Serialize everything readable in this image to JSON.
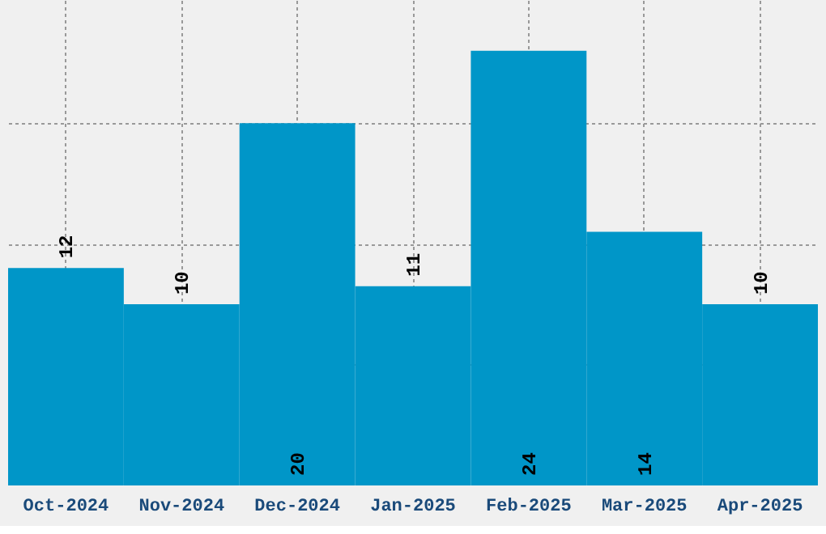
{
  "chart_data": {
    "type": "bar",
    "categories": [
      "Oct-2024",
      "Nov-2024",
      "Dec-2024",
      "Jan-2025",
      "Feb-2025",
      "Mar-2025",
      "Apr-2025"
    ],
    "values": [
      12,
      10,
      20,
      11,
      24,
      14,
      10
    ],
    "color": "#0096c8",
    "ylim": [
      0,
      26.8
    ],
    "yticks": [
      {
        "value": 6.7,
        "label": null
      },
      {
        "value": 13.3,
        "label": null
      },
      {
        "value": 20,
        "label": null
      }
    ],
    "grid": true,
    "tick_labels": "x",
    "data_labels": true
  }
}
